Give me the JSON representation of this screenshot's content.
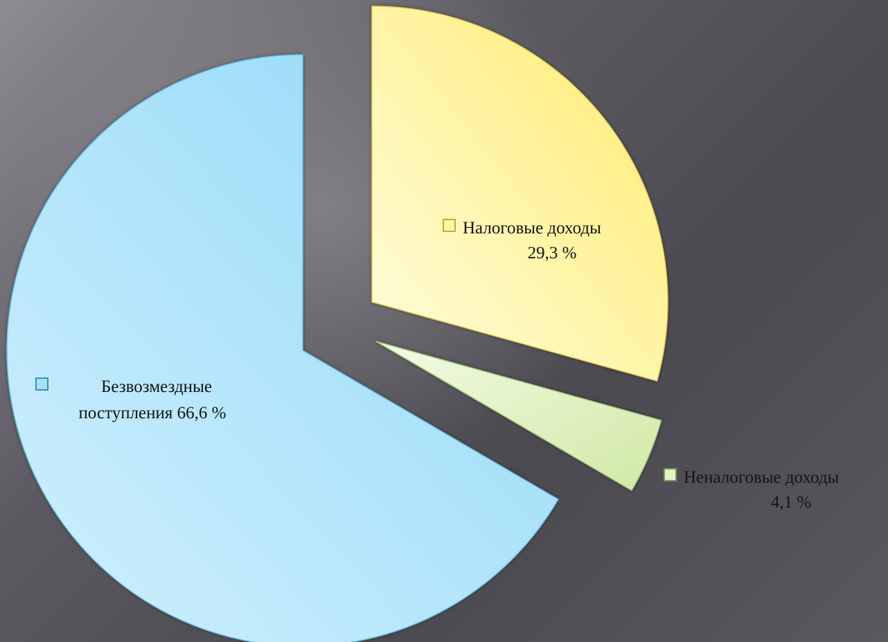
{
  "chart_data": {
    "type": "pie",
    "exploded": true,
    "slices": [
      {
        "name": "Налоговые доходы",
        "value": 29.3,
        "value_label": "29,3 %",
        "color": "#fdf6a8",
        "legend_key_color": "#fdf6a8"
      },
      {
        "name": "Неналоговые доходы",
        "value": 4.1,
        "value_label": "4,1 %",
        "color": "#e2f3c8",
        "legend_key_color": "#e2f3c8"
      },
      {
        "name": "Безвозмездные поступления",
        "value": 66.6,
        "value_label": "66,6 %",
        "label_lines": [
          "Безвозмездные",
          "поступления 66,6 %"
        ],
        "color": "#a6e0fa",
        "legend_key_color": "#a6e0fa"
      }
    ]
  },
  "colors": {
    "background": "#55535a",
    "label_text": "#141414"
  }
}
